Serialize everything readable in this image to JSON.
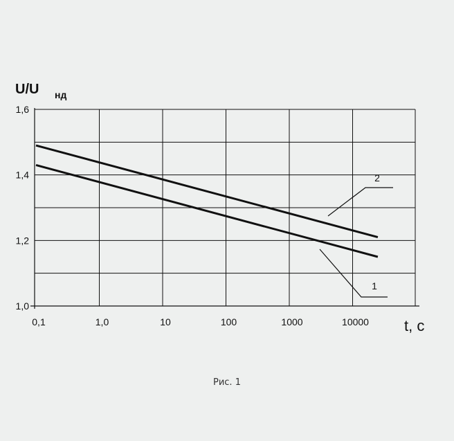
{
  "chart_data": {
    "type": "line",
    "ylabel_main": "U/U",
    "ylabel_sub": "нд",
    "xlabel": "t, с",
    "x_scale": "log",
    "x_ticks": [
      "0,1",
      "1,0",
      "10",
      "100",
      "1000",
      "10000"
    ],
    "x_tick_values": [
      0.1,
      1,
      10,
      100,
      1000,
      10000
    ],
    "y_ticks": [
      "1,0",
      "1,2",
      "1,4",
      "1,6"
    ],
    "y_tick_values": [
      1.0,
      1.2,
      1.4,
      1.6
    ],
    "ylim": [
      1.0,
      1.6
    ],
    "grid": true,
    "series": [
      {
        "name": "1",
        "x": [
          0.1,
          25000
        ],
        "y": [
          1.43,
          1.15
        ]
      },
      {
        "name": "2",
        "x": [
          0.1,
          25000
        ],
        "y": [
          1.49,
          1.21
        ]
      }
    ],
    "caption": "Рис. 1"
  }
}
